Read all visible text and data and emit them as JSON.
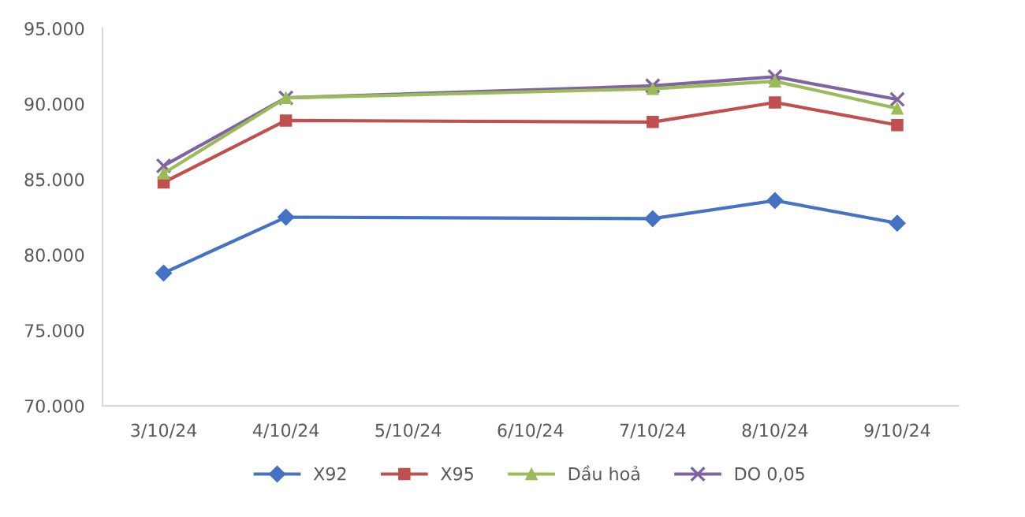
{
  "chart_data": {
    "type": "line",
    "categories": [
      "3/10/24",
      "4/10/24",
      "5/10/24",
      "6/10/24",
      "7/10/24",
      "8/10/24",
      "9/10/24"
    ],
    "series": [
      {
        "name": "X92",
        "color": "#4472c4",
        "marker": "diamond",
        "values": [
          78800,
          82500,
          null,
          null,
          82400,
          83600,
          82100
        ]
      },
      {
        "name": "X95",
        "color": "#c0504d",
        "marker": "square",
        "values": [
          84800,
          88900,
          null,
          null,
          88800,
          90100,
          88600
        ]
      },
      {
        "name": "Dầu hoả",
        "color": "#9bbb59",
        "marker": "triangle",
        "values": [
          85400,
          90400,
          null,
          null,
          91000,
          91500,
          89700
        ]
      },
      {
        "name": "DO 0,05",
        "color": "#8064a2",
        "marker": "cross",
        "values": [
          85900,
          90400,
          null,
          null,
          91200,
          91800,
          90300
        ]
      }
    ],
    "ylim": [
      70000,
      95000
    ],
    "yticks": [
      {
        "value": 70000,
        "label": "70.000"
      },
      {
        "value": 75000,
        "label": "75.000"
      },
      {
        "value": 80000,
        "label": "80.000"
      },
      {
        "value": 85000,
        "label": "85.000"
      },
      {
        "value": 90000,
        "label": "90.000"
      },
      {
        "value": 95000,
        "label": "95.000"
      }
    ],
    "grid": false,
    "legend": "bottom",
    "line_style": "solid"
  }
}
